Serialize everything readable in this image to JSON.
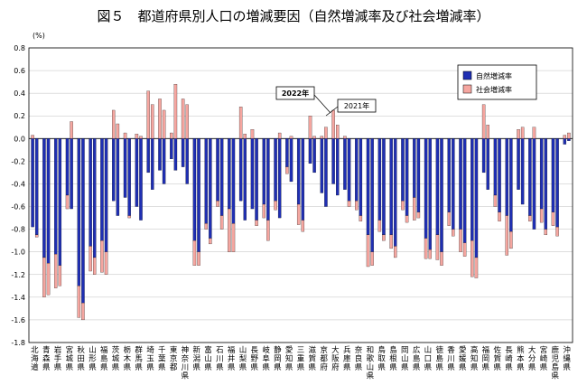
{
  "chart_data": {
    "type": "bar",
    "title": "図５　都道府県別人口の増減要因（自然増減率及び社会増減率）",
    "ylabel": "(%)",
    "ylim": [
      -1.8,
      0.8
    ],
    "yticks": [
      "0.8",
      "0.6",
      "0.4",
      "0.2",
      "0.0",
      "-0.2",
      "-0.4",
      "-0.6",
      "-0.8",
      "-1.0",
      "-1.2",
      "-1.4",
      "-1.6",
      "-1.8"
    ],
    "grid": true,
    "legend_position": "top-right",
    "bar_order_note": "each prefecture shows 2021 bars then 2022 bars",
    "annotations": [
      "2022年",
      "2021年"
    ],
    "categories": [
      "北海道",
      "青森県",
      "岩手県",
      "宮城県",
      "秋田県",
      "山形県",
      "福島県",
      "茨城県",
      "栃木県",
      "群馬県",
      "埼玉県",
      "千葉県",
      "東京都",
      "神奈川県",
      "新潟県",
      "富山県",
      "石川県",
      "福井県",
      "山梨県",
      "長野県",
      "岐阜県",
      "静岡県",
      "愛知県",
      "三重県",
      "滋賀県",
      "京都府",
      "大阪府",
      "兵庫県",
      "奈良県",
      "和歌山県",
      "鳥取県",
      "島根県",
      "岡山県",
      "広島県",
      "山口県",
      "徳島県",
      "香川県",
      "愛媛県",
      "高知県",
      "福岡県",
      "佐賀県",
      "長崎県",
      "熊本県",
      "大分県",
      "宮崎県",
      "鹿児島県",
      "沖縄県"
    ],
    "colors": {
      "natural": "#1f2fb3",
      "social": "#f5a6a0"
    },
    "series": [
      {
        "name": "自然増減率",
        "year": "2021年",
        "values": [
          -0.78,
          -1.05,
          -1.02,
          -0.5,
          -1.3,
          -0.95,
          -0.9,
          -0.55,
          -0.52,
          -0.6,
          -0.3,
          -0.28,
          -0.18,
          -0.25,
          -0.9,
          -0.75,
          -0.55,
          -0.62,
          -0.55,
          -0.62,
          -0.58,
          -0.55,
          -0.25,
          -0.58,
          -0.22,
          -0.48,
          -0.4,
          -0.45,
          -0.55,
          -0.85,
          -0.72,
          -0.85,
          -0.55,
          -0.52,
          -0.88,
          -0.85,
          -0.65,
          -0.8,
          -0.9,
          -0.3,
          -0.5,
          -0.68,
          -0.45,
          -0.68,
          -0.62,
          -0.65,
          -0.05
        ]
      },
      {
        "name": "社会増減率",
        "year": "2021年",
        "values": [
          0.03,
          -0.35,
          -0.3,
          -0.12,
          -0.28,
          -0.22,
          -0.28,
          0.25,
          0.05,
          0.04,
          0.42,
          0.35,
          0.05,
          0.35,
          -0.22,
          -0.05,
          -0.05,
          -0.38,
          0.28,
          0.08,
          -0.12,
          -0.08,
          -0.06,
          -0.18,
          0.2,
          0.02,
          0.25,
          0.02,
          -0.08,
          -0.28,
          -0.1,
          -0.12,
          -0.08,
          -0.2,
          -0.18,
          -0.22,
          -0.12,
          -0.2,
          -0.32,
          0.3,
          -0.1,
          -0.35,
          0.08,
          -0.05,
          -0.12,
          -0.12,
          0.03
        ]
      },
      {
        "name": "自然増減率",
        "year": "2022年",
        "values": [
          -0.85,
          -1.1,
          -1.12,
          -0.62,
          -1.45,
          -1.05,
          -1.0,
          -0.68,
          -0.68,
          -0.72,
          -0.45,
          -0.4,
          -0.28,
          -0.4,
          -1.0,
          -0.88,
          -0.68,
          -0.75,
          -0.72,
          -0.72,
          -0.72,
          -0.7,
          -0.38,
          -0.72,
          -0.3,
          -0.6,
          -0.5,
          -0.55,
          -0.68,
          -1.0,
          -0.85,
          -0.95,
          -0.68,
          -0.65,
          -0.98,
          -1.0,
          -0.8,
          -0.92,
          -1.05,
          -0.45,
          -0.65,
          -0.82,
          -0.58,
          -0.8,
          -0.8,
          -0.78,
          -0.02
        ]
      },
      {
        "name": "社会増減率",
        "year": "2022年",
        "values": [
          -0.02,
          -0.28,
          -0.18,
          0.15,
          -0.15,
          -0.15,
          -0.2,
          0.13,
          -0.02,
          0.02,
          0.3,
          0.25,
          0.48,
          0.3,
          -0.12,
          -0.05,
          -0.12,
          -0.25,
          0.04,
          -0.05,
          -0.18,
          0.05,
          0.02,
          -0.1,
          0.02,
          0.1,
          0.12,
          -0.05,
          -0.05,
          -0.12,
          -0.05,
          -0.1,
          -0.06,
          -0.05,
          -0.08,
          -0.12,
          -0.06,
          -0.12,
          -0.18,
          0.12,
          -0.08,
          -0.15,
          0.1,
          0.1,
          -0.05,
          -0.08,
          0.05
        ]
      }
    ]
  }
}
